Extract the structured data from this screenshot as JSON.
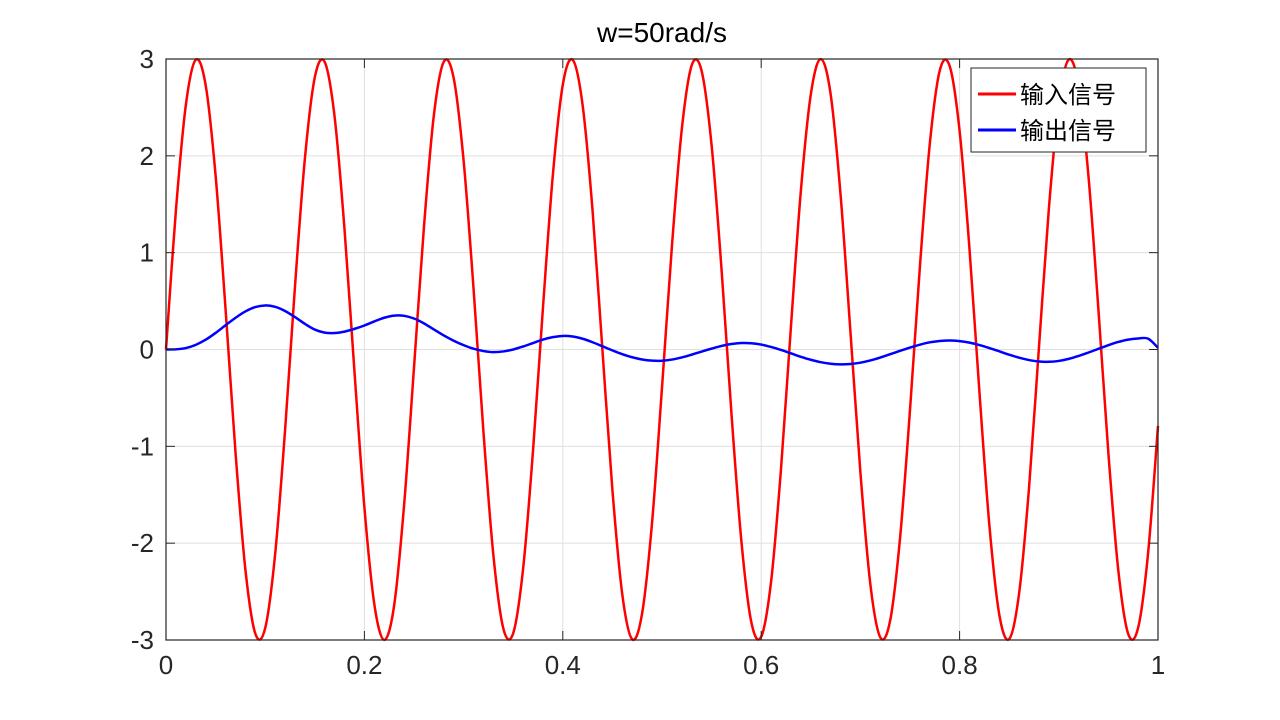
{
  "chart_data": {
    "type": "line",
    "title": "w=50rad/s",
    "xlabel": "",
    "ylabel": "",
    "xlim": [
      0,
      1
    ],
    "ylim": [
      -3,
      3
    ],
    "grid": true,
    "legend_position": "top-right",
    "xticks": [
      0,
      0.2,
      0.4,
      0.6,
      0.8,
      1
    ],
    "xtick_labels": [
      "0",
      "0.2",
      "0.4",
      "0.6",
      "0.8",
      "1"
    ],
    "yticks": [
      -3,
      -2,
      -1,
      0,
      1,
      2,
      3
    ],
    "ytick_labels": [
      "-3",
      "-2",
      "-1",
      "0",
      "1",
      "2",
      "3"
    ],
    "series": [
      {
        "name": "输入信号",
        "color": "#ff0000",
        "x": [
          0,
          0.01,
          0.02,
          0.03,
          0.04,
          0.05,
          0.06,
          0.07,
          0.08,
          0.09,
          0.1,
          0.11,
          0.12,
          0.13,
          0.14,
          0.15,
          0.16,
          0.17,
          0.18,
          0.19,
          0.2,
          0.21,
          0.22,
          0.23,
          0.24,
          0.25,
          0.26,
          0.27,
          0.28,
          0.29,
          0.3,
          0.31,
          0.32,
          0.33,
          0.34,
          0.35,
          0.36,
          0.37,
          0.38,
          0.39,
          0.4,
          0.41,
          0.42,
          0.43,
          0.44,
          0.45,
          0.46,
          0.47,
          0.48,
          0.49,
          0.5,
          0.51,
          0.52,
          0.53,
          0.54,
          0.55,
          0.56,
          0.57,
          0.58,
          0.59,
          0.6,
          0.61,
          0.62,
          0.63,
          0.64,
          0.65,
          0.66,
          0.67,
          0.68,
          0.69,
          0.7,
          0.71,
          0.72,
          0.73,
          0.74,
          0.75,
          0.76,
          0.77,
          0.78,
          0.79,
          0.8,
          0.81,
          0.82,
          0.83,
          0.84,
          0.85,
          0.86,
          0.87,
          0.88,
          0.89,
          0.9,
          0.91,
          0.92,
          0.93,
          0.94,
          0.95,
          0.96,
          0.97,
          0.98,
          0.99,
          1
        ],
        "y": [
          0,
          1.438,
          2.524,
          2.992,
          2.728,
          1.796,
          0.423,
          -1.054,
          -2.27,
          -2.933,
          -2.877,
          -2.116,
          -0.838,
          0.648,
          1.97,
          2.811,
          2.968,
          2.4,
          1.236,
          -0.231,
          -1.632,
          -2.63,
          -2.999,
          -2.642,
          -1.608,
          -0.187,
          1.262,
          2.417,
          2.971,
          2.802,
          1.951,
          0.632,
          -0.849,
          -2.122,
          -2.879,
          -2.93,
          -2.263,
          -1.042,
          0.431,
          1.805,
          2.734,
          2.991,
          2.522,
          1.435,
          -0.013,
          -1.45,
          -2.532,
          -2.993,
          -2.722,
          -1.785,
          -0.394,
          1.066,
          2.278,
          2.936,
          2.874,
          2.109,
          0.83,
          -0.659,
          -1.976,
          -2.814,
          -2.966,
          -2.394,
          -1.228,
          0.24,
          1.641,
          2.634,
          2.999,
          2.637,
          1.598,
          0.178,
          -1.269,
          -2.422,
          -2.972,
          -2.799,
          -1.944,
          -0.624,
          0.858,
          2.129,
          2.881,
          2.927,
          2.257,
          1.034,
          -0.44,
          -1.813,
          -2.738,
          -2.99,
          -2.517,
          -1.428,
          0.022,
          1.456,
          2.536,
          2.994,
          2.719,
          1.779,
          0.403,
          -1.073,
          -2.282,
          -2.938,
          -2.872,
          -2.104,
          -0.79
        ]
      },
      {
        "name": "输出信号",
        "color": "#0000ff",
        "x": [
          0,
          0.01,
          0.02,
          0.03,
          0.04,
          0.05,
          0.06,
          0.07,
          0.08,
          0.09,
          0.1,
          0.11,
          0.12,
          0.13,
          0.14,
          0.15,
          0.16,
          0.17,
          0.18,
          0.19,
          0.2,
          0.21,
          0.22,
          0.23,
          0.24,
          0.25,
          0.26,
          0.27,
          0.28,
          0.29,
          0.3,
          0.31,
          0.32,
          0.33,
          0.34,
          0.35,
          0.36,
          0.37,
          0.38,
          0.39,
          0.4,
          0.41,
          0.42,
          0.43,
          0.44,
          0.45,
          0.46,
          0.47,
          0.48,
          0.49,
          0.5,
          0.51,
          0.52,
          0.53,
          0.54,
          0.55,
          0.56,
          0.57,
          0.58,
          0.59,
          0.6,
          0.61,
          0.62,
          0.63,
          0.64,
          0.65,
          0.66,
          0.67,
          0.68,
          0.69,
          0.7,
          0.71,
          0.72,
          0.73,
          0.74,
          0.75,
          0.76,
          0.77,
          0.78,
          0.79,
          0.8,
          0.81,
          0.82,
          0.83,
          0.84,
          0.85,
          0.86,
          0.87,
          0.88,
          0.89,
          0.9,
          0.91,
          0.92,
          0.93,
          0.94,
          0.95,
          0.96,
          0.97,
          0.98,
          0.99,
          1
        ],
        "y": [
          0,
          0.002,
          0.015,
          0.048,
          0.101,
          0.171,
          0.25,
          0.327,
          0.393,
          0.438,
          0.455,
          0.441,
          0.398,
          0.335,
          0.265,
          0.206,
          0.174,
          0.17,
          0.185,
          0.213,
          0.248,
          0.29,
          0.328,
          0.35,
          0.348,
          0.32,
          0.27,
          0.207,
          0.145,
          0.091,
          0.045,
          0.008,
          -0.016,
          -0.027,
          -0.02,
          0.0,
          0.031,
          0.067,
          0.103,
          0.128,
          0.14,
          0.134,
          0.111,
          0.075,
          0.033,
          -0.009,
          -0.048,
          -0.08,
          -0.103,
          -0.115,
          -0.116,
          -0.104,
          -0.082,
          -0.053,
          -0.021,
          0.009,
          0.037,
          0.057,
          0.067,
          0.065,
          0.051,
          0.026,
          -0.005,
          -0.04,
          -0.075,
          -0.106,
          -0.131,
          -0.147,
          -0.154,
          -0.15,
          -0.136,
          -0.113,
          -0.083,
          -0.049,
          -0.014,
          0.02,
          0.05,
          0.074,
          0.088,
          0.093,
          0.087,
          0.071,
          0.046,
          0.015,
          -0.019,
          -0.054,
          -0.085,
          -0.109,
          -0.124,
          -0.127,
          -0.118,
          -0.097,
          -0.067,
          -0.031,
          0.007,
          0.045,
          0.078,
          0.102,
          0.114,
          0.112,
          0.018
        ]
      }
    ]
  }
}
